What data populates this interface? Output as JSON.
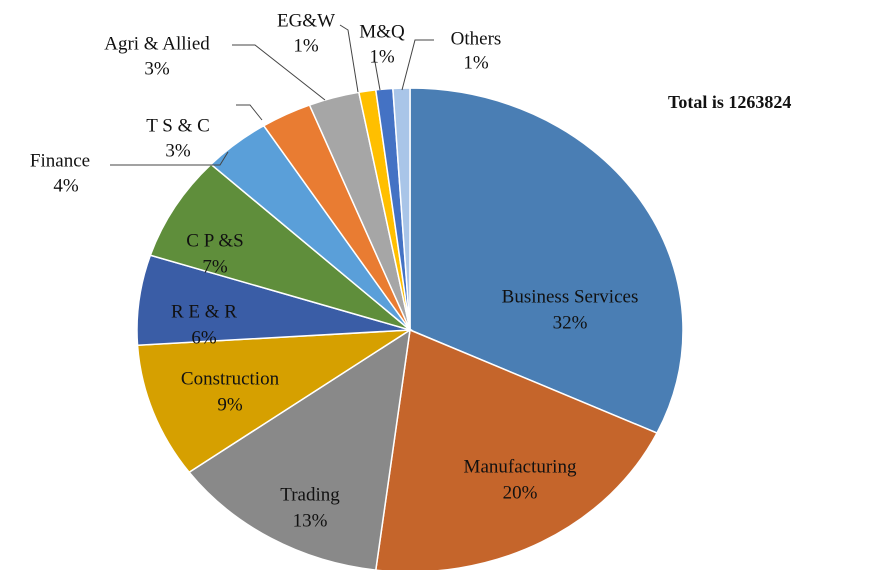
{
  "chart_data": {
    "type": "pie",
    "annotation": "Total is 1263824",
    "categories": [
      "Business Services",
      "Manufacturing",
      "Trading",
      "Construction",
      "R E & R",
      "C P &S",
      "Finance",
      "T S  & C",
      "Agri & Allied",
      "EG&W",
      "M&Q",
      "Others"
    ],
    "values": [
      32,
      20,
      13,
      9,
      6,
      7,
      4,
      3,
      3,
      1,
      1,
      1
    ],
    "value_labels": [
      "32%",
      "20%",
      "13%",
      "9%",
      "6%",
      "7%",
      "4%",
      "3%",
      "3%",
      "1%",
      "1%",
      "1%"
    ],
    "colors": [
      "#4a7eb4",
      "#c5652b",
      "#898989",
      "#d6a000",
      "#3a5da6",
      "#5f8e3b",
      "#5a9fd9",
      "#e97c32",
      "#a6a6a6",
      "#ffbf00",
      "#4472c4",
      "#a9c5e8"
    ]
  }
}
